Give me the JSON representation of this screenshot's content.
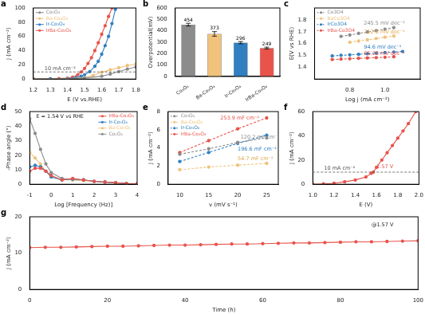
{
  "chart_data": [
    {
      "type": "line",
      "title": "a",
      "x_label": "E (V vs.RHE)",
      "y_label": "J (mA cm⁻²)",
      "xlim": [
        1.2,
        1.8
      ],
      "xticks": [
        1.2,
        1.3,
        1.4,
        1.5,
        1.6,
        1.7,
        1.8
      ],
      "ylim": [
        0,
        100
      ],
      "yticks": [
        0,
        20,
        40,
        60,
        80,
        100
      ],
      "grid": false,
      "legend": "upper left",
      "annotations": [
        {
          "text": "10 mA cm⁻²",
          "y": 10,
          "line_style": "dashed",
          "color": "#555555"
        }
      ],
      "series": [
        {
          "name": "Co₃O₄",
          "color": "#8c8c8c",
          "marker": "circle",
          "line_style": "solid",
          "x": [
            1.2,
            1.4,
            1.5,
            1.6,
            1.65,
            1.7,
            1.75,
            1.8
          ],
          "values": [
            0,
            0.3,
            1.5,
            4,
            7,
            10.5,
            14,
            17
          ]
        },
        {
          "name": "Ba-Co₃O₄",
          "color": "#f0c27b",
          "marker": "circle",
          "line_style": "solid",
          "x": [
            1.2,
            1.4,
            1.5,
            1.55,
            1.6,
            1.65,
            1.7,
            1.75,
            1.8
          ],
          "values": [
            0,
            0.5,
            2,
            5,
            9.5,
            13,
            16,
            19,
            21
          ]
        },
        {
          "name": "Ir-Co₃O₄",
          "color": "#2f7fc1",
          "marker": "circle",
          "line_style": "solid",
          "x": [
            1.2,
            1.3,
            1.4,
            1.45,
            1.48,
            1.5,
            1.53,
            1.56,
            1.58,
            1.6,
            1.62,
            1.64,
            1.66,
            1.68
          ],
          "values": [
            0,
            0.2,
            0.8,
            2,
            4,
            6,
            10.5,
            18,
            25,
            35,
            47,
            60,
            78,
            98
          ]
        },
        {
          "name": "IrBa-Co₃O₄",
          "color": "#e8534a",
          "marker": "circle",
          "line_style": "solid",
          "x": [
            1.2,
            1.3,
            1.35,
            1.4,
            1.43,
            1.46,
            1.48,
            1.5,
            1.52,
            1.54,
            1.56,
            1.58,
            1.6,
            1.62,
            1.64,
            1.66
          ],
          "values": [
            0,
            0.3,
            0.6,
            1.2,
            2.5,
            6,
            10,
            15,
            22,
            30,
            40,
            51,
            63,
            75,
            88,
            100
          ]
        }
      ]
    },
    {
      "type": "bar",
      "title": "b",
      "y_label": "Overpotential(mV)",
      "categories": [
        "Co₃O₄",
        "Ba-Co₃O₄",
        "Ir-Co₃O₄",
        "IrBa-Co₃O₄"
      ],
      "values": [
        454,
        373,
        296,
        249
      ],
      "errors": [
        12,
        20,
        10,
        8
      ],
      "colors": [
        "#8c8c8c",
        "#f0c27b",
        "#2f7fc1",
        "#e8534a"
      ],
      "ylim": [
        0,
        600
      ],
      "yticks": [
        0,
        100,
        200,
        300,
        400,
        500,
        600
      ],
      "grid": false,
      "data_labels": true
    },
    {
      "type": "scatter",
      "title": "c",
      "x_label": "Log j (mA cm⁻²)",
      "y_label": "E(V vs RHE)",
      "xlim": [
        0.6,
        1.2
      ],
      "xticks": [
        0.8,
        {
          "value": 1,
          "label": "1.0"
        }
      ],
      "ylim": [
        1.3,
        1.9
      ],
      "yticks": [
        1.4,
        1.5,
        1.6,
        1.7,
        1.8
      ],
      "grid": false,
      "legend": "upper left",
      "annotations": [
        {
          "text": "245.5 mV dec⁻¹",
          "x": 0.88,
          "y": 1.745,
          "color": "#8c8c8c"
        },
        {
          "text": "212.8 mV dec⁻¹",
          "x": 0.88,
          "y": 1.675,
          "color": "#e0a84f"
        },
        {
          "text": "94.6 mV dec⁻¹",
          "x": 0.88,
          "y": 1.545,
          "color": "#2f7fc1"
        },
        {
          "text": "65.28 mV dec⁻¹",
          "x": 0.88,
          "y": 1.495,
          "color": "#e8534a"
        }
      ],
      "series": [
        {
          "name": "Co3O4",
          "color": "#8c8c8c",
          "marker": "circle",
          "line_style": "dashed",
          "x": [
            0.75,
            0.8,
            0.85,
            0.9,
            0.95,
            1.0,
            1.05
          ],
          "values": [
            1.66,
            1.672,
            1.685,
            1.697,
            1.709,
            1.721,
            1.734
          ]
        },
        {
          "name": "BaCo3O4",
          "color": "#f0c27b",
          "marker": "circle",
          "line_style": "dashed",
          "x": [
            0.8,
            0.85,
            0.9,
            0.95,
            1.0,
            1.05
          ],
          "values": [
            1.61,
            1.621,
            1.631,
            1.642,
            1.653,
            1.663
          ]
        },
        {
          "name": "IrCo3O4",
          "color": "#2f7fc1",
          "marker": "circle",
          "line_style": "dashed",
          "x": [
            0.7,
            0.75,
            0.8,
            0.85,
            0.9,
            0.95,
            1.0,
            1.05,
            1.1
          ],
          "values": [
            1.495,
            1.5,
            1.504,
            1.509,
            1.514,
            1.519,
            1.524,
            1.528,
            1.533
          ]
        },
        {
          "name": "IrBa-Co3O4",
          "color": "#e8534a",
          "marker": "circle",
          "line_style": "dashed",
          "x": [
            0.7,
            0.75,
            0.8,
            0.85,
            0.9,
            0.95,
            1.0,
            1.05
          ],
          "values": [
            1.465,
            1.468,
            1.472,
            1.475,
            1.478,
            1.481,
            1.484,
            1.488
          ]
        }
      ]
    },
    {
      "type": "line",
      "title": "d",
      "x_label": "Log [Frequency (Hz)]",
      "y_label": "-Phase angle (°)",
      "xlim": [
        -1,
        4
      ],
      "xticks": [
        -1,
        0,
        1,
        2,
        3,
        4
      ],
      "ylim": [
        0,
        50
      ],
      "yticks": [
        0,
        10,
        20,
        30,
        40,
        50
      ],
      "grid": false,
      "legend": "upper right",
      "annotations": [
        {
          "text": "E = 1.54 V vs RHE",
          "x": -0.7,
          "y": 45,
          "color": "#222222"
        }
      ],
      "series": [
        {
          "name": "IrBa-Co₃O₄",
          "color": "#e8534a",
          "marker": "circle",
          "line_style": "solid",
          "x": [
            -1,
            -0.75,
            -0.5,
            -0.25,
            0,
            0.5,
            1,
            1.5,
            2,
            2.5,
            3,
            3.5,
            4
          ],
          "values": [
            9,
            11,
            11,
            9,
            6,
            3,
            4,
            3,
            2,
            1.5,
            1,
            0.5,
            0.3
          ]
        },
        {
          "name": "Ir-Co₃O₄",
          "color": "#2f7fc1",
          "marker": "circle",
          "line_style": "solid",
          "x": [
            -1,
            -0.75,
            -0.5,
            -0.25,
            0,
            0.5,
            1,
            1.5,
            2,
            2.5,
            3,
            3.5,
            4
          ],
          "values": [
            12,
            13,
            12,
            9,
            5,
            3,
            3.5,
            3,
            2,
            1.5,
            1,
            0.5,
            0.3
          ]
        },
        {
          "name": "Ba-Co₃O₄",
          "color": "#f0c27b",
          "marker": "circle",
          "line_style": "solid",
          "x": [
            -1,
            -0.75,
            -0.5,
            -0.25,
            0,
            0.5,
            1,
            1.5,
            2,
            2.5,
            3,
            3.5,
            4
          ],
          "values": [
            22,
            18,
            14,
            9,
            5,
            3,
            3,
            2.5,
            2,
            1.5,
            1,
            0.5,
            0.3
          ]
        },
        {
          "name": "Co₃O₄",
          "color": "#8c8c8c",
          "marker": "circle",
          "line_style": "solid",
          "x": [
            -1,
            -0.75,
            -0.5,
            -0.25,
            0,
            0.5,
            1,
            1.5,
            2,
            2.5,
            3,
            3.5,
            4
          ],
          "values": [
            45,
            35,
            24,
            14,
            8,
            4,
            3,
            3,
            2,
            1.5,
            1,
            0.5,
            0.3
          ]
        }
      ]
    },
    {
      "type": "scatter",
      "title": "e",
      "x_label": "v (mV s⁻¹)",
      "y_label": "J (mA cm⁻²)",
      "xlim": [
        8,
        27
      ],
      "xticks": [
        10,
        15,
        20,
        25
      ],
      "ylim": [
        0,
        8
      ],
      "yticks": [
        0,
        2,
        4,
        6,
        8
      ],
      "grid": false,
      "legend": "upper left",
      "annotations": [
        {
          "text": "253.9 mF cm⁻²",
          "x": 17,
          "y": 7.0,
          "color": "#e8534a"
        },
        {
          "text": "120.2 mF cm⁻²",
          "x": 20.5,
          "y": 4.85,
          "color": "#8c8c8c"
        },
        {
          "text": "196.6 mF cm⁻²",
          "x": 20,
          "y": 3.6,
          "color": "#2f7fc1"
        },
        {
          "text": "54.7 mF cm⁻²",
          "x": 20,
          "y": 2.5,
          "color": "#e0a84f"
        }
      ],
      "series": [
        {
          "name": "Co₃O₄",
          "color": "#8c8c8c",
          "marker": "circle",
          "line_style": "dashed",
          "x": [
            10,
            15,
            20,
            25
          ],
          "values": [
            3.3,
            3.9,
            4.6,
            5.1
          ]
        },
        {
          "name": "Ba-Co₃O₄",
          "color": "#f0c27b",
          "marker": "circle",
          "line_style": "dashed",
          "x": [
            10,
            15,
            20,
            25
          ],
          "values": [
            1.6,
            1.9,
            2.1,
            2.3
          ]
        },
        {
          "name": "Ir-Co₃O₄",
          "color": "#2f7fc1",
          "marker": "circle",
          "line_style": "dashed",
          "x": [
            10,
            15,
            20,
            25
          ],
          "values": [
            2.5,
            3.5,
            4.5,
            5.4
          ]
        },
        {
          "name": "IrBa-Co₃O₄",
          "color": "#e8534a",
          "marker": "circle",
          "line_style": "dashed",
          "x": [
            10,
            15,
            20,
            25
          ],
          "values": [
            3.5,
            4.8,
            6.1,
            7.3
          ]
        }
      ]
    },
    {
      "type": "line",
      "title": "f",
      "x_label": "E (V)",
      "y_label": "J (mA cm⁻²)",
      "xlim": [
        1,
        2
      ],
      "xticks": [
        {
          "value": 1,
          "label": "1.0"
        },
        1.2,
        1.4,
        1.6,
        1.8,
        {
          "value": 2,
          "label": "2.0"
        }
      ],
      "ylim": [
        0,
        60
      ],
      "yticks": [
        0,
        20,
        40,
        60
      ],
      "grid": false,
      "annotations": [
        {
          "text": "10 mA cm⁻²",
          "y": 10,
          "line_style": "dashed",
          "color": "#555555"
        },
        {
          "text": "1.57 V",
          "x": 1.6,
          "y": 12,
          "color": "#e8534a"
        }
      ],
      "series": [
        {
          "name": "IrBa-Co₃O₄",
          "color": "#e8534a",
          "marker": "circle",
          "line_style": "solid",
          "x": [
            1.0,
            1.1,
            1.2,
            1.3,
            1.4,
            1.5,
            1.55,
            1.57,
            1.6,
            1.65,
            1.7,
            1.75,
            1.8,
            1.85,
            1.9,
            1.97
          ],
          "values": [
            0,
            0.3,
            0.8,
            2,
            3.5,
            6,
            9,
            10,
            14,
            20,
            26,
            32,
            38,
            44,
            50,
            60
          ]
        }
      ]
    },
    {
      "type": "scatter",
      "title": "g",
      "x_label": "Time (h)",
      "y_label": "J (mA cm⁻²)",
      "xlim": [
        0,
        100
      ],
      "xticks": [
        0,
        20,
        40,
        60,
        80,
        100
      ],
      "ylim": [
        0,
        20
      ],
      "yticks": [
        0,
        10,
        20
      ],
      "grid": false,
      "annotations": [
        {
          "text": "@1.57 V",
          "x": 88,
          "y": 17,
          "color": "#222222"
        }
      ],
      "series": [
        {
          "name": "IrBa-Co₃O₄",
          "color": "#e8534a",
          "marker": "circle",
          "line_style": "solid",
          "x": [
            0,
            4,
            8,
            12,
            16,
            20,
            24,
            28,
            32,
            36,
            40,
            44,
            48,
            52,
            56,
            60,
            64,
            68,
            72,
            76,
            80,
            84,
            88,
            92,
            96,
            100
          ],
          "values": [
            11.5,
            11.6,
            11.6,
            11.7,
            11.8,
            11.9,
            11.9,
            12.0,
            12.1,
            12.2,
            12.2,
            12.3,
            12.4,
            12.5,
            12.5,
            12.6,
            12.7,
            12.8,
            12.8,
            12.9,
            13.0,
            13.1,
            13.1,
            13.2,
            13.3,
            13.4
          ]
        }
      ]
    }
  ]
}
